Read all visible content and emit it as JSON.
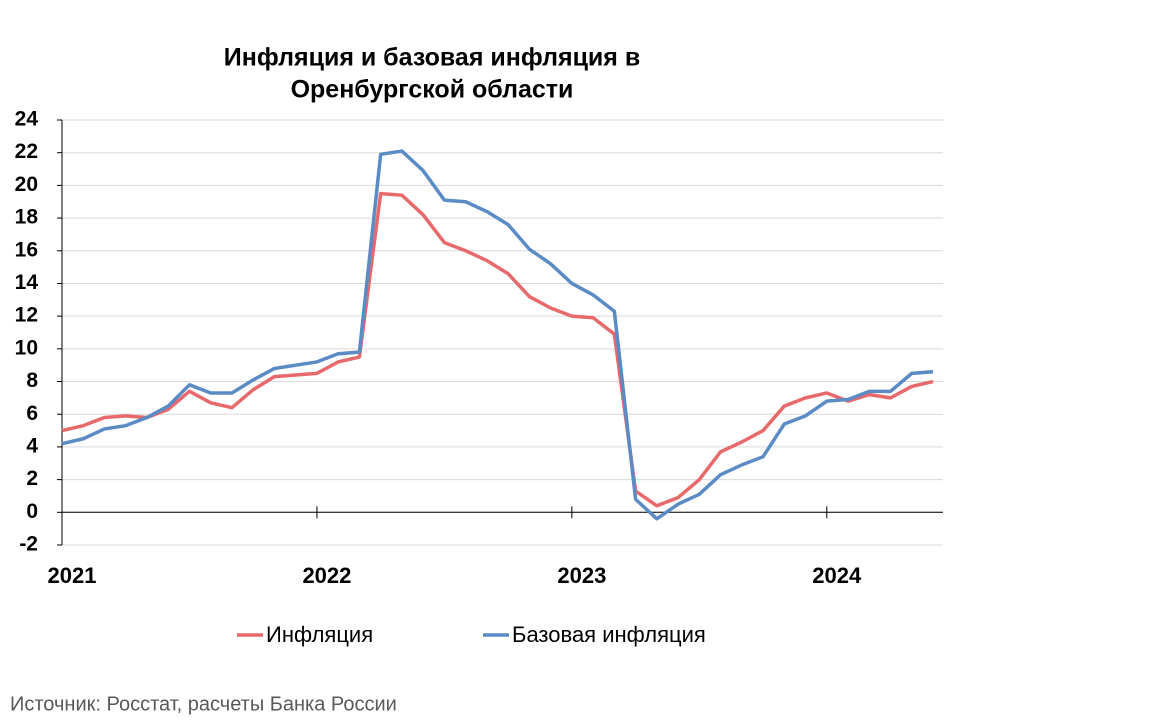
{
  "chart_data": {
    "type": "line",
    "title": [
      "Инфляция и базовая инфляция в",
      "Оренбургской области"
    ],
    "categories": [
      "2021",
      null,
      null,
      null,
      null,
      null,
      null,
      null,
      null,
      null,
      null,
      null,
      "2022",
      null,
      null,
      null,
      null,
      null,
      null,
      null,
      null,
      null,
      null,
      null,
      "2023",
      null,
      null,
      null,
      null,
      null,
      null,
      null,
      null,
      null,
      null,
      null,
      "2024",
      null,
      null,
      null,
      null,
      null
    ],
    "series": [
      {
        "name": "Инфляция",
        "color": "#e8696b",
        "values": [
          5.0,
          5.3,
          5.8,
          5.9,
          5.8,
          6.3,
          7.4,
          6.7,
          6.4,
          7.5,
          8.3,
          8.4,
          8.5,
          9.2,
          9.5,
          19.5,
          19.4,
          18.2,
          16.5,
          16.0,
          15.4,
          14.6,
          13.2,
          12.5,
          12.0,
          11.9,
          10.9,
          1.3,
          0.4,
          0.9,
          2.0,
          3.7,
          4.3,
          5.0,
          6.5,
          7.0,
          7.3,
          6.8,
          7.2,
          7.0,
          7.7,
          8.0
        ]
      },
      {
        "name": "Базовая инфляция",
        "color": "#5b8bc4",
        "values": [
          4.2,
          4.5,
          5.1,
          5.3,
          5.8,
          6.5,
          7.8,
          7.3,
          7.3,
          8.1,
          8.8,
          9.0,
          9.2,
          9.7,
          9.8,
          21.9,
          22.1,
          20.9,
          19.1,
          19.0,
          18.4,
          17.6,
          16.1,
          15.2,
          14.0,
          13.3,
          12.3,
          0.8,
          -0.4,
          0.5,
          1.1,
          2.3,
          2.9,
          3.4,
          5.4,
          5.9,
          6.8,
          6.9,
          7.4,
          7.4,
          8.5,
          8.6
        ]
      }
    ],
    "ylim": [
      -2,
      24
    ],
    "yticks": [
      -2,
      0,
      2,
      4,
      6,
      8,
      10,
      12,
      14,
      16,
      18,
      20,
      22,
      24
    ],
    "grid": true,
    "legend": "bottom",
    "source": "Источник: Росстат, расчеты Банка России"
  }
}
